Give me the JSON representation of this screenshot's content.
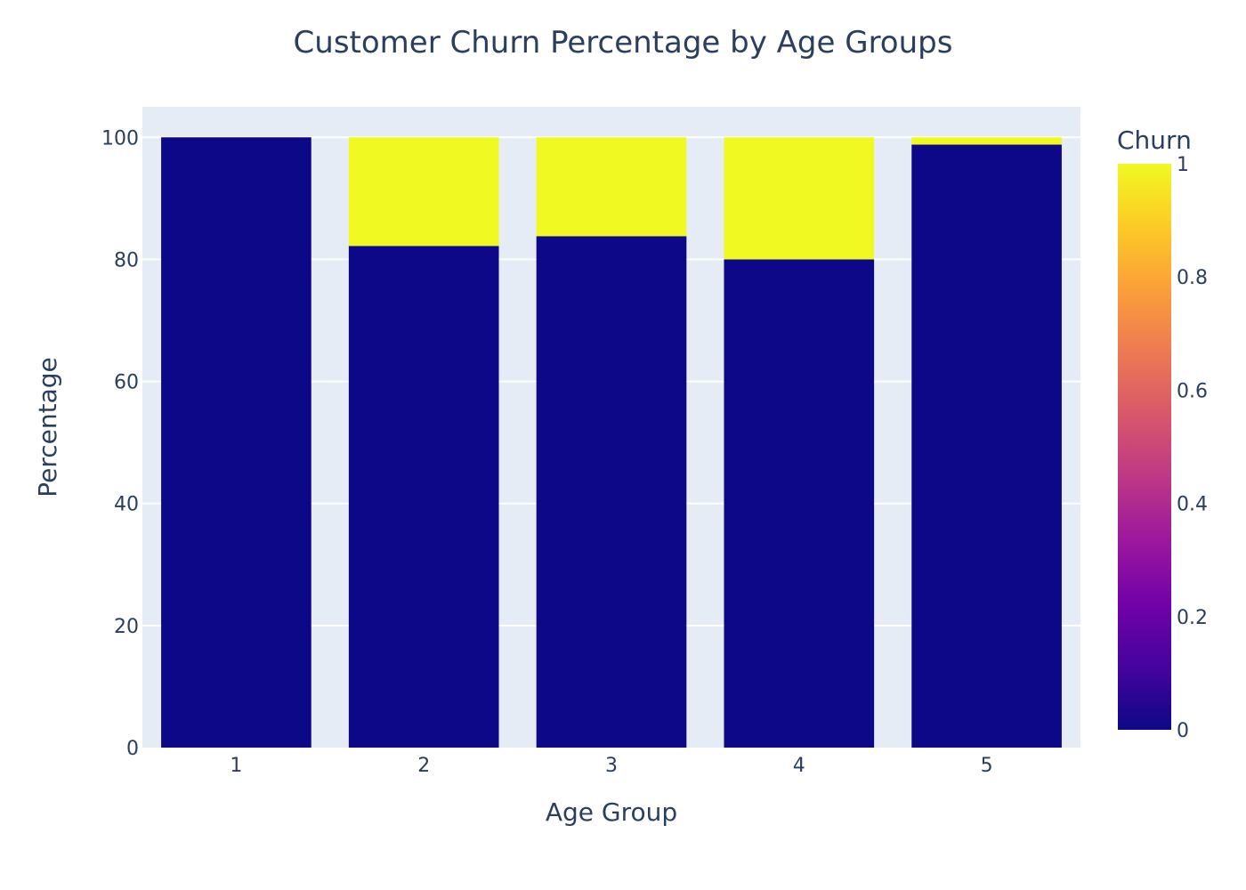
{
  "chart_data": {
    "type": "bar",
    "barmode": "stack",
    "title": "Customer Churn Percentage by Age Groups",
    "xlabel": "Age Group",
    "ylabel": "Percentage",
    "categories": [
      "1",
      "2",
      "3",
      "4",
      "5"
    ],
    "series": [
      {
        "churn_value": 0,
        "color": "#0d0887",
        "values": [
          100,
          82.2,
          83.8,
          80.0,
          98.8
        ]
      },
      {
        "churn_value": 1,
        "color": "#f0f921",
        "values": [
          0,
          17.8,
          16.2,
          20.0,
          1.2
        ]
      }
    ],
    "ylim": [
      0,
      105
    ],
    "yticks": [
      0,
      20,
      40,
      60,
      80,
      100
    ],
    "grid": true,
    "plot_bgcolor": "#e5ecf6",
    "colorbar": {
      "title": "Churn",
      "range": [
        0,
        1
      ],
      "ticks": [
        "0",
        "0.2",
        "0.4",
        "0.6",
        "0.8",
        "1"
      ],
      "tick_values": [
        0,
        0.2,
        0.4,
        0.6,
        0.8,
        1
      ],
      "colorscale": [
        "#0d0887",
        "#46039f",
        "#7201a8",
        "#9c179e",
        "#bd3786",
        "#d8576b",
        "#ed7953",
        "#fb9f3a",
        "#fdca26",
        "#f0f921"
      ]
    }
  }
}
